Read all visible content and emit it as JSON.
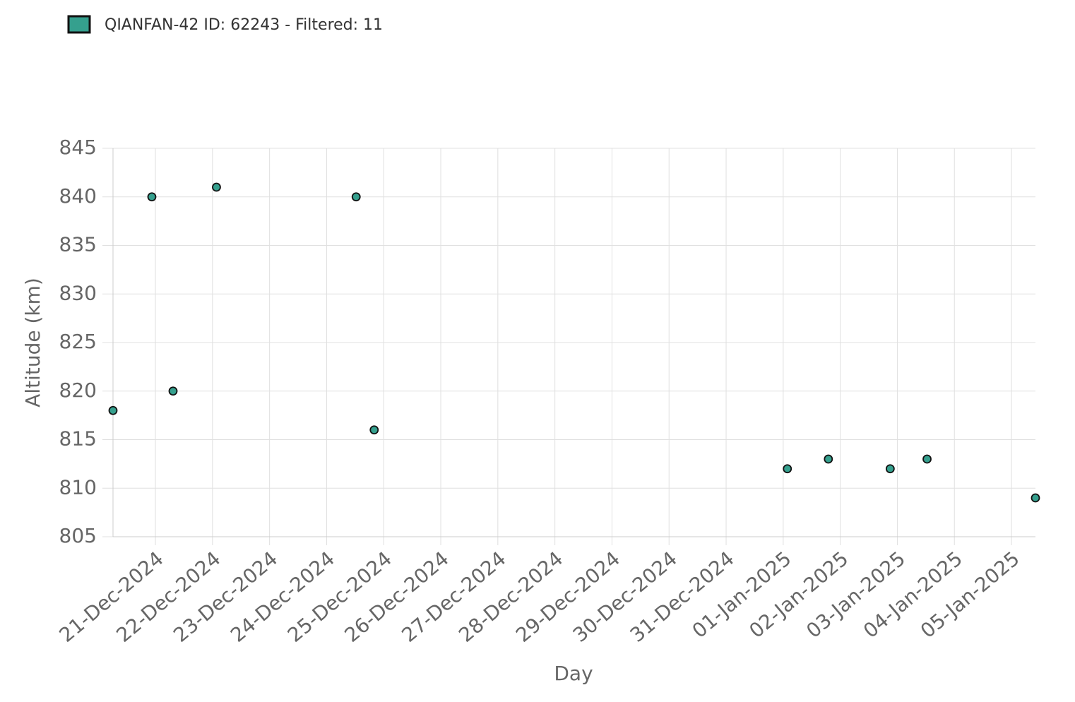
{
  "chart_data": {
    "type": "scatter",
    "legend": "QIANFAN-42 ID: 62243 - Filtered: 11",
    "xlabel": "Day",
    "ylabel": "Altitude (km)",
    "series": [
      {
        "name": "QIANFAN-42 ID: 62243 - Filtered: 11",
        "color": "#35a08e",
        "x": [
          "2024-12-20T06:10Z",
          "2024-12-20T22:30Z",
          "2024-12-21T07:25Z",
          "2024-12-22T01:40Z",
          "2024-12-24T12:25Z",
          "2024-12-24T20:00Z",
          "2025-01-01T01:45Z",
          "2025-01-01T19:00Z",
          "2025-01-02T21:00Z",
          "2025-01-03T12:30Z",
          "2025-01-05T10:05Z"
        ],
        "values": [
          818,
          840,
          820,
          841,
          840,
          816,
          812,
          813,
          812,
          813,
          809
        ]
      }
    ],
    "xlim": [
      "2024-12-20T06:10Z",
      "2025-01-05T10:05Z"
    ],
    "xticks": [
      {
        "value": "2024-12-21T00:00Z",
        "label": "21-Dec-2024"
      },
      {
        "value": "2024-12-22T00:00Z",
        "label": "22-Dec-2024"
      },
      {
        "value": "2024-12-23T00:00Z",
        "label": "23-Dec-2024"
      },
      {
        "value": "2024-12-24T00:00Z",
        "label": "24-Dec-2024"
      },
      {
        "value": "2024-12-25T00:00Z",
        "label": "25-Dec-2024"
      },
      {
        "value": "2024-12-26T00:00Z",
        "label": "26-Dec-2024"
      },
      {
        "value": "2024-12-27T00:00Z",
        "label": "27-Dec-2024"
      },
      {
        "value": "2024-12-28T00:00Z",
        "label": "28-Dec-2024"
      },
      {
        "value": "2024-12-29T00:00Z",
        "label": "29-Dec-2024"
      },
      {
        "value": "2024-12-30T00:00Z",
        "label": "30-Dec-2024"
      },
      {
        "value": "2024-12-31T00:00Z",
        "label": "31-Dec-2024"
      },
      {
        "value": "2025-01-01T00:00Z",
        "label": "01-Jan-2025"
      },
      {
        "value": "2025-01-02T00:00Z",
        "label": "02-Jan-2025"
      },
      {
        "value": "2025-01-03T00:00Z",
        "label": "03-Jan-2025"
      },
      {
        "value": "2025-01-04T00:00Z",
        "label": "04-Jan-2025"
      },
      {
        "value": "2025-01-05T00:00Z",
        "label": "05-Jan-2025"
      }
    ],
    "ylim": [
      805,
      845
    ],
    "yticks": [
      805,
      810,
      815,
      820,
      825,
      830,
      835,
      840,
      845
    ],
    "grid": true
  }
}
